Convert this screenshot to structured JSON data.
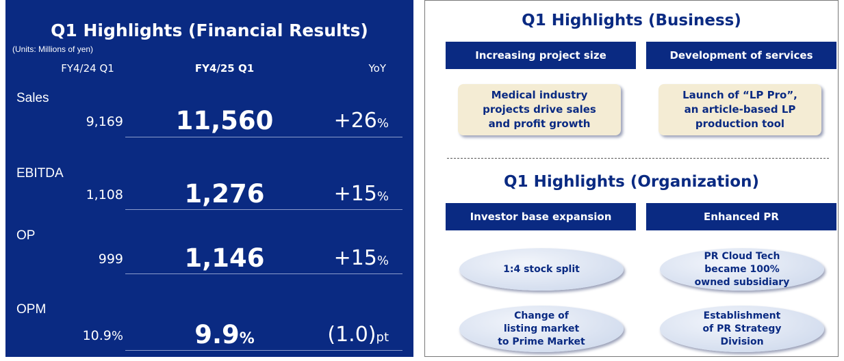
{
  "financial": {
    "title": "Q1 Highlights (Financial Results)",
    "units": "(Units: Millions of yen)",
    "headers": [
      "FY4/24 Q1",
      "FY4/25 Q1",
      "YoY"
    ],
    "rows": [
      {
        "label": "Sales",
        "prev": {
          "num": "9,169",
          "unit": ""
        },
        "curr": {
          "num": "11,560",
          "unit": ""
        },
        "yoy": {
          "num": "+26",
          "unit": "%"
        }
      },
      {
        "label": "EBITDA",
        "prev": {
          "num": "1,108",
          "unit": ""
        },
        "curr": {
          "num": "1,276",
          "unit": ""
        },
        "yoy": {
          "num": "+15",
          "unit": "%"
        }
      },
      {
        "label": "OP",
        "prev": {
          "num": "999",
          "unit": ""
        },
        "curr": {
          "num": "1,146",
          "unit": ""
        },
        "yoy": {
          "num": "+15",
          "unit": "%"
        }
      },
      {
        "label": "OPM",
        "prev": {
          "num": "10.9",
          "unit": "%"
        },
        "curr": {
          "num": "9.9",
          "unit": "%"
        },
        "yoy": {
          "num": "(1.0)",
          "unit": "pt"
        }
      }
    ]
  },
  "business": {
    "title": "Q1 Highlights (Business)",
    "columns": [
      {
        "header": "Increasing project size",
        "items": [
          [
            "Medical industry",
            "projects drive sales",
            "and profit growth"
          ]
        ]
      },
      {
        "header": "Development of services",
        "items": [
          [
            "Launch of “LP Pro”,",
            "an article-based LP",
            "production tool"
          ]
        ]
      }
    ]
  },
  "organization": {
    "title": "Q1 Highlights (Organization)",
    "columns": [
      {
        "header": "Investor base expansion",
        "items": [
          [
            "1:4 stock split"
          ],
          [
            "Change of",
            "listing market",
            "to Prime Market"
          ]
        ]
      },
      {
        "header": "Enhanced PR",
        "items": [
          [
            "PR Cloud Tech",
            "became 100%",
            "owned subsidiary"
          ],
          [
            "Establishment",
            "of PR Strategy",
            "Division"
          ]
        ]
      }
    ]
  }
}
